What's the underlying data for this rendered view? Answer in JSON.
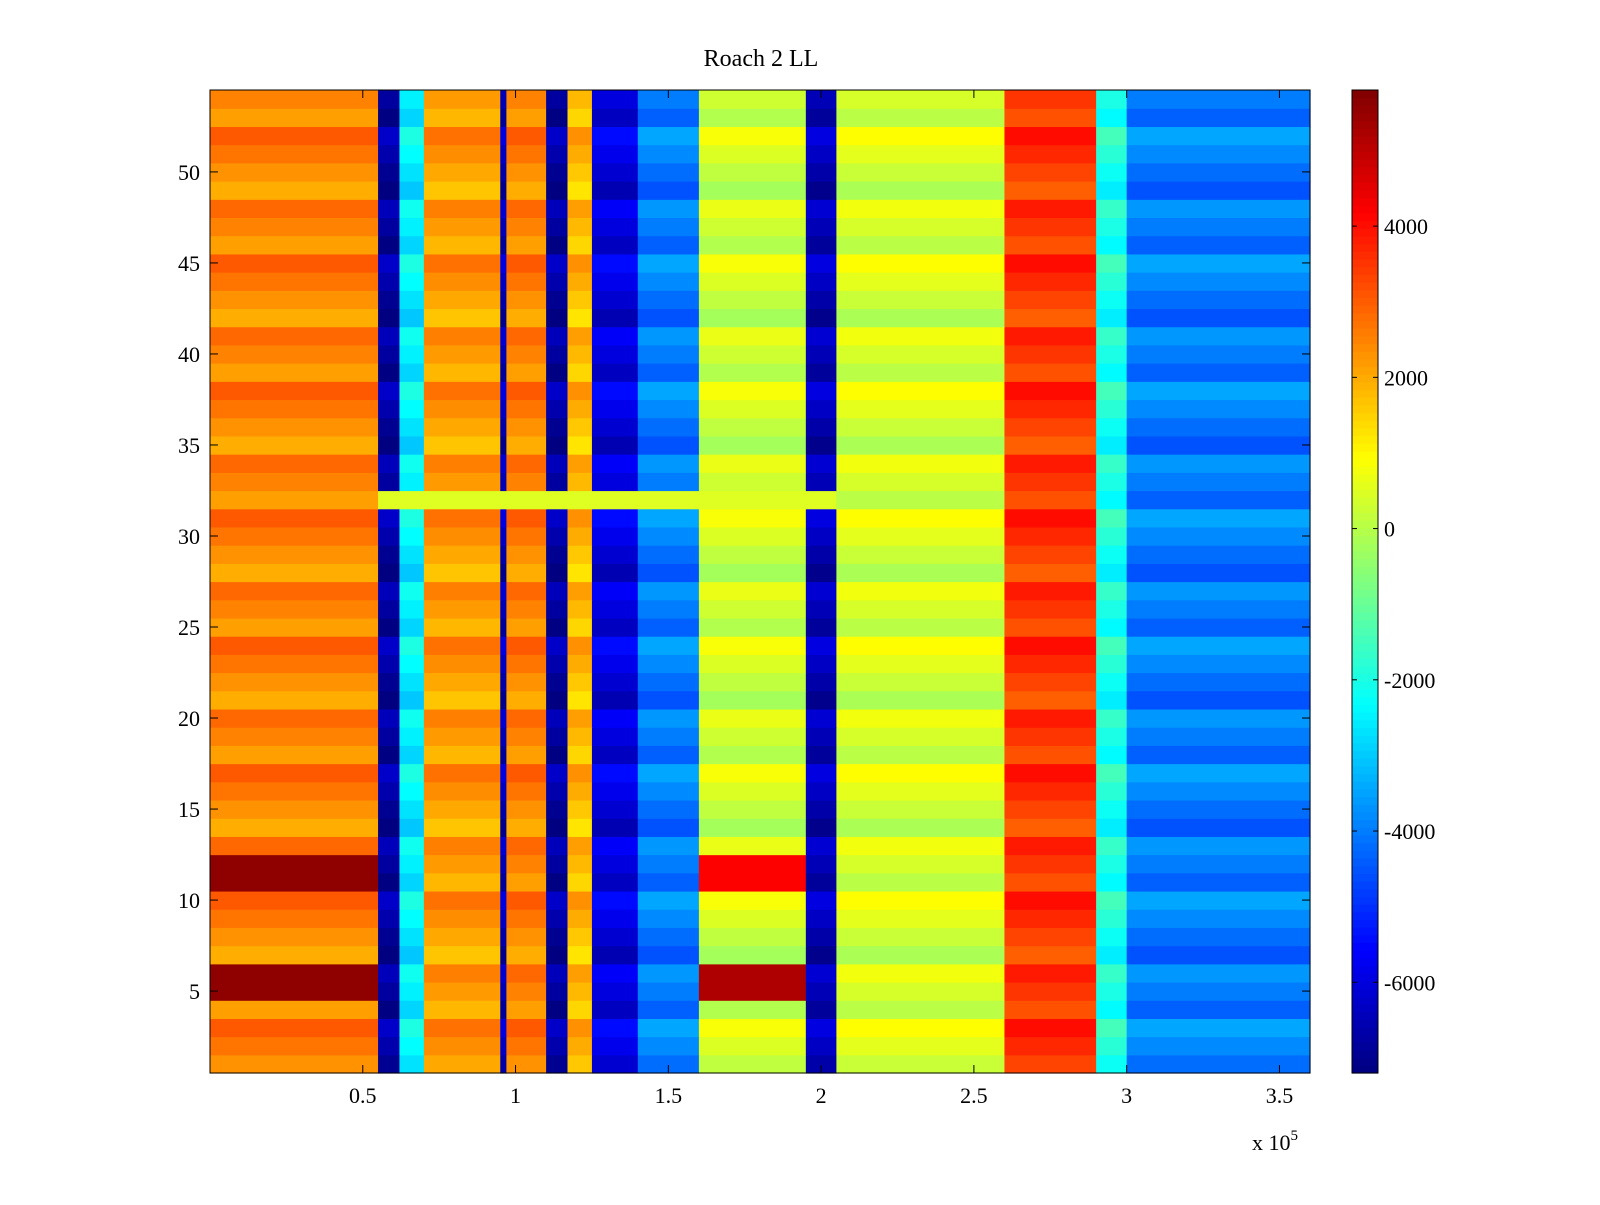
{
  "chart_data": {
    "type": "heatmap",
    "title": "Roach 2 LL",
    "xlabel": "",
    "ylabel": "",
    "x_multiplier_label": "x 10",
    "x_multiplier_exponent": "5",
    "xlim": [
      0,
      3.6
    ],
    "ylim": [
      0.5,
      54.5
    ],
    "x_ticks": [
      0.5,
      1,
      1.5,
      2,
      2.5,
      3,
      3.5
    ],
    "x_tick_labels": [
      "0.5",
      "1",
      "1.5",
      "2",
      "2.5",
      "3",
      "3.5"
    ],
    "y_ticks": [
      5,
      10,
      15,
      20,
      25,
      30,
      35,
      40,
      45,
      50
    ],
    "y_tick_labels": [
      "5",
      "10",
      "15",
      "20",
      "25",
      "30",
      "35",
      "40",
      "45",
      "50"
    ],
    "colormap": "jet",
    "clim": [
      -7200,
      5800
    ],
    "colorbar_ticks": [
      4000,
      2000,
      0,
      -2000,
      -4000,
      -6000
    ],
    "colorbar_tick_labels": [
      "4000",
      "2000",
      "0",
      "-2000",
      "-4000",
      "-6000"
    ],
    "rows": 54,
    "column_profile": [
      {
        "x": [
          0.0,
          0.55
        ],
        "value": 2500
      },
      {
        "x": [
          0.55,
          0.62
        ],
        "value": -6800
      },
      {
        "x": [
          0.62,
          0.7
        ],
        "value": -2500
      },
      {
        "x": [
          0.7,
          0.95
        ],
        "value": 2200
      },
      {
        "x": [
          0.95,
          0.97
        ],
        "value": -6500
      },
      {
        "x": [
          0.97,
          1.1
        ],
        "value": 2500
      },
      {
        "x": [
          1.1,
          1.17
        ],
        "value": -6800
      },
      {
        "x": [
          1.17,
          1.25
        ],
        "value": 1800
      },
      {
        "x": [
          1.25,
          1.4
        ],
        "value": -6000
      },
      {
        "x": [
          1.4,
          1.6
        ],
        "value": -4000
      },
      {
        "x": [
          1.6,
          1.95
        ],
        "value": 300
      },
      {
        "x": [
          1.95,
          2.05
        ],
        "value": -6500
      },
      {
        "x": [
          2.05,
          2.6
        ],
        "value": 400
      },
      {
        "x": [
          2.6,
          2.9
        ],
        "value": 3500
      },
      {
        "x": [
          2.9,
          3.0
        ],
        "value": -2000
      },
      {
        "x": [
          3.0,
          3.6
        ],
        "value": -4000
      }
    ],
    "row_anomalies": [
      {
        "rows": [
          5,
          6
        ],
        "x": [
          0.0,
          0.55
        ],
        "value": 5600
      },
      {
        "rows": [
          11,
          12
        ],
        "x": [
          0.0,
          0.55
        ],
        "value": 5600
      },
      {
        "rows": [
          5,
          6
        ],
        "x": [
          1.6,
          1.95
        ],
        "value": 5200
      },
      {
        "rows": [
          11,
          12
        ],
        "x": [
          1.6,
          1.95
        ],
        "value": 4200
      },
      {
        "rows": [
          32
        ],
        "x": [
          0.55,
          2.05
        ],
        "value": 500
      }
    ]
  }
}
